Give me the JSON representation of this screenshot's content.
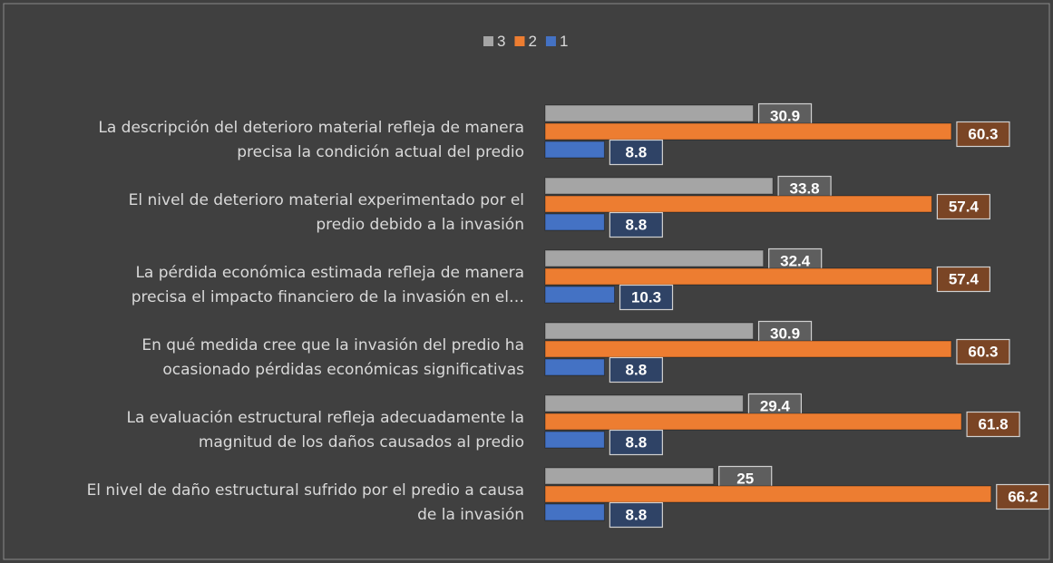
{
  "chart_data": {
    "type": "hbar",
    "categories": [
      "La descripción del deterioro material refleja de manera\nprecisa la condición actual del predio",
      "El nivel de deterioro material experimentado por el\npredio debido a la invasión",
      "La pérdida económica estimada refleja de manera\nprecisa el impacto financiero de la invasión en el…",
      "En qué medida cree que la invasión del predio ha\nocasionado pérdidas económicas significativas",
      "La evaluación estructural refleja adecuadamente la\nmagnitud de los daños causados al predio",
      "El nivel de daño estructural sufrido por el predio a causa\nde la invasión"
    ],
    "series": [
      {
        "name": "3",
        "color": "#a5a5a5",
        "label_color": "#5e5e5e",
        "values": [
          30.9,
          33.8,
          32.4,
          30.9,
          29.4,
          25
        ]
      },
      {
        "name": "2",
        "color": "#ed7d31",
        "label_color": "#7a4525",
        "values": [
          60.3,
          57.4,
          57.4,
          60.3,
          61.8,
          66.2
        ]
      },
      {
        "name": "1",
        "color": "#4472c4",
        "label_color": "#2f4366",
        "values": [
          8.8,
          8.8,
          10.3,
          8.8,
          8.8,
          8.8
        ]
      }
    ],
    "xlim": [
      0,
      70
    ],
    "legend": "top"
  }
}
